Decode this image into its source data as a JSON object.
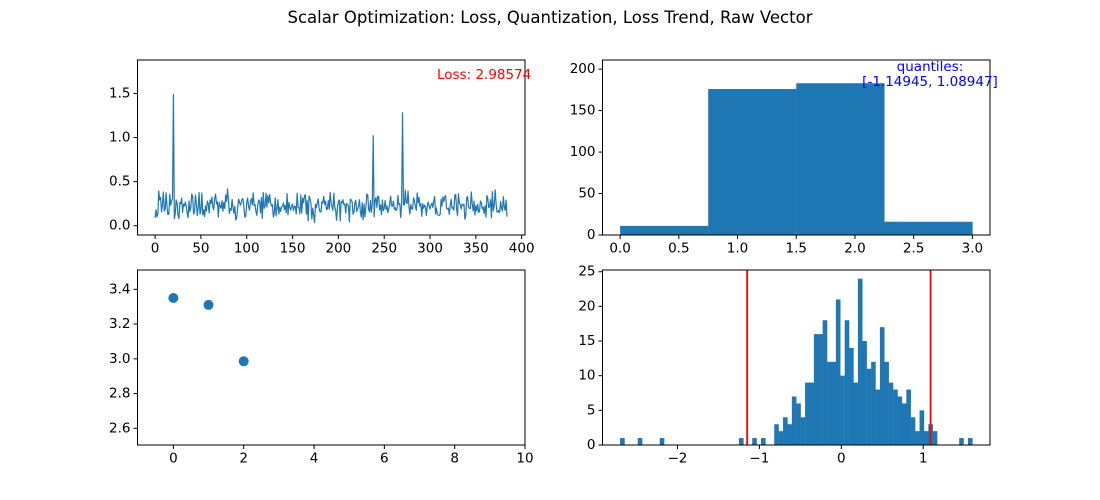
{
  "figure": {
    "title": "Scalar Optimization: Loss, Quantization, Loss Trend, Raw Vector",
    "annotations": {
      "loss": "Loss: 2.98574",
      "loss_color": "#ff0000",
      "quantiles_line1": "quantiles:",
      "quantiles_line2": "[-1.14945, 1.08947]",
      "quantiles_color": "#0000ff"
    },
    "series_color": "#1f77b4",
    "axis_color": "#000000"
  },
  "chart_data": [
    {
      "id": "loss-per-element",
      "position": "top-left",
      "type": "line",
      "title": "",
      "xlabel": "",
      "ylabel": "",
      "xlim": [
        -19.2,
        403.6
      ],
      "ylim": [
        -0.106,
        1.88
      ],
      "xticks": {
        "values": [
          0,
          50,
          100,
          150,
          200,
          250,
          300,
          350,
          400
        ],
        "labels": [
          "0",
          "50",
          "100",
          "150",
          "200",
          "250",
          "300",
          "350",
          "400"
        ]
      },
      "yticks": {
        "values": [
          0.0,
          0.5,
          1.0,
          1.5
        ],
        "labels": [
          "0.0",
          "0.5",
          "1.0",
          "1.5"
        ]
      },
      "series": {
        "n_points": 385,
        "noise_min": 0.02,
        "noise_max": 0.42,
        "seed": 42,
        "spikes": [
          {
            "i": 20,
            "value": 1.49
          },
          {
            "i": 238,
            "value": 1.02
          },
          {
            "i": 270,
            "value": 1.28
          }
        ]
      },
      "line_width": 1.2,
      "color": "#1f77b4"
    },
    {
      "id": "quantization-histogram",
      "position": "top-right",
      "type": "bar",
      "title": "",
      "xlabel": "",
      "ylabel": "",
      "bin_edges": [
        0.0,
        0.75,
        1.5,
        2.25,
        3.0
      ],
      "counts": [
        11,
        176,
        183,
        16
      ],
      "xlim": [
        -0.15,
        3.15
      ],
      "ylim": [
        0,
        211
      ],
      "xticks": {
        "values": [
          0.0,
          0.5,
          1.0,
          1.5,
          2.0,
          2.5,
          3.0
        ],
        "labels": [
          "0.0",
          "0.5",
          "1.0",
          "1.5",
          "2.0",
          "2.5",
          "3.0"
        ]
      },
      "yticks": {
        "values": [
          0,
          50,
          100,
          150,
          200
        ],
        "labels": [
          "0",
          "50",
          "100",
          "150",
          "200"
        ]
      },
      "color": "#1f77b4"
    },
    {
      "id": "loss-trend",
      "position": "bottom-left",
      "type": "scatter",
      "title": "",
      "xlabel": "",
      "ylabel": "",
      "x": [
        0,
        1,
        2
      ],
      "y": [
        3.35,
        3.31,
        2.98574
      ],
      "xlim": [
        -1.02,
        10.0
      ],
      "ylim": [
        2.504,
        3.511
      ],
      "xticks": {
        "values": [
          0,
          2,
          4,
          6,
          8,
          10
        ],
        "labels": [
          "0",
          "2",
          "4",
          "6",
          "8",
          "10"
        ]
      },
      "yticks": {
        "values": [
          2.6,
          2.8,
          3.0,
          3.2,
          3.4
        ],
        "labels": [
          "2.6",
          "2.8",
          "3.0",
          "3.2",
          "3.4"
        ]
      },
      "marker_radius": 5,
      "color": "#1f77b4"
    },
    {
      "id": "raw-vector-histogram",
      "position": "bottom-right",
      "type": "bar",
      "title": "",
      "xlabel": "",
      "ylabel": "",
      "bin_start": -2.7,
      "bin_width": 0.05375,
      "counts": [
        1,
        0,
        0,
        0,
        1,
        0,
        0,
        0,
        0,
        1,
        0,
        0,
        0,
        0,
        0,
        0,
        0,
        0,
        0,
        0,
        0,
        0,
        0,
        0,
        0,
        0,
        0,
        1,
        0,
        0,
        1,
        0,
        1,
        0,
        0,
        3,
        2,
        4,
        3,
        7,
        6,
        4,
        9,
        9,
        16,
        16,
        18,
        12,
        12,
        21,
        10,
        18,
        14,
        9,
        24,
        15,
        11,
        12,
        8,
        17,
        12,
        9,
        8,
        7,
        6,
        8,
        4,
        2,
        5,
        2,
        3,
        2,
        0,
        0,
        0,
        0,
        0,
        1,
        0,
        1
      ],
      "vlines": {
        "values": [
          -1.14945,
          1.08947
        ],
        "color": "#ff0000",
        "width": 1.8
      },
      "xlim": [
        -2.915,
        1.815
      ],
      "ylim": [
        0,
        25.25
      ],
      "xticks": {
        "values": [
          -2,
          -1,
          0,
          1
        ],
        "labels": [
          "−2",
          "−1",
          "0",
          "1"
        ]
      },
      "yticks": {
        "values": [
          0,
          5,
          10,
          15,
          20,
          25
        ],
        "labels": [
          "0",
          "5",
          "10",
          "15",
          "20",
          "25"
        ]
      },
      "color": "#1f77b4"
    }
  ]
}
